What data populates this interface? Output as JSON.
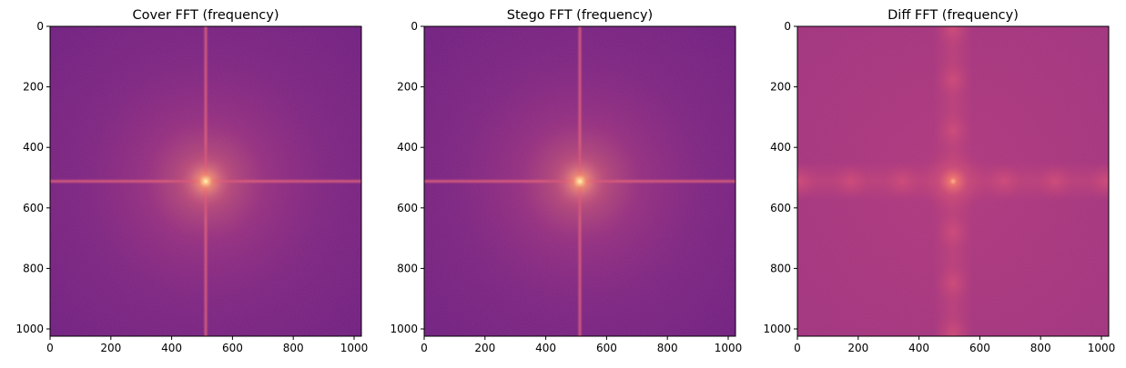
{
  "colors": {
    "background": "#ffffff",
    "colormap": "magma",
    "cover_base": "#76207f",
    "cover_glow": "#ffe6a8",
    "cover_line": "#c94a78",
    "diff_base": "#a8347c",
    "diff_glow": "#f17a72"
  },
  "chart_data": [
    {
      "type": "heatmap",
      "title": "Cover FFT (frequency)",
      "xlim": [
        0,
        1024
      ],
      "ylim": [
        1024,
        0
      ],
      "x_ticks": [
        "0",
        "200",
        "400",
        "600",
        "800",
        "1000"
      ],
      "y_ticks": [
        "0",
        "200",
        "400",
        "600",
        "800",
        "1000"
      ],
      "colormap": "magma",
      "peak": [
        512,
        512
      ],
      "pattern": "central bright spot with horizontal and vertical streaks through the center"
    },
    {
      "type": "heatmap",
      "title": "Stego FFT (frequency)",
      "xlim": [
        0,
        1024
      ],
      "ylim": [
        1024,
        0
      ],
      "x_ticks": [
        "0",
        "200",
        "400",
        "600",
        "800",
        "1000"
      ],
      "y_ticks": [
        "0",
        "200",
        "400",
        "600",
        "800",
        "1000"
      ],
      "colormap": "magma",
      "peak": [
        512,
        512
      ],
      "pattern": "central bright spot with horizontal and vertical streaks through the center"
    },
    {
      "type": "heatmap",
      "title": "Diff FFT (frequency)",
      "xlim": [
        0,
        1024
      ],
      "ylim": [
        1024,
        0
      ],
      "x_ticks": [
        "0",
        "200",
        "400",
        "600",
        "800",
        "1000"
      ],
      "y_ticks": [
        "0",
        "200",
        "400",
        "600",
        "800",
        "1000"
      ],
      "colormap": "magma",
      "peak": [
        512,
        512
      ],
      "pattern": "uniform magenta field with periodic bright blobs along the central cross"
    }
  ]
}
